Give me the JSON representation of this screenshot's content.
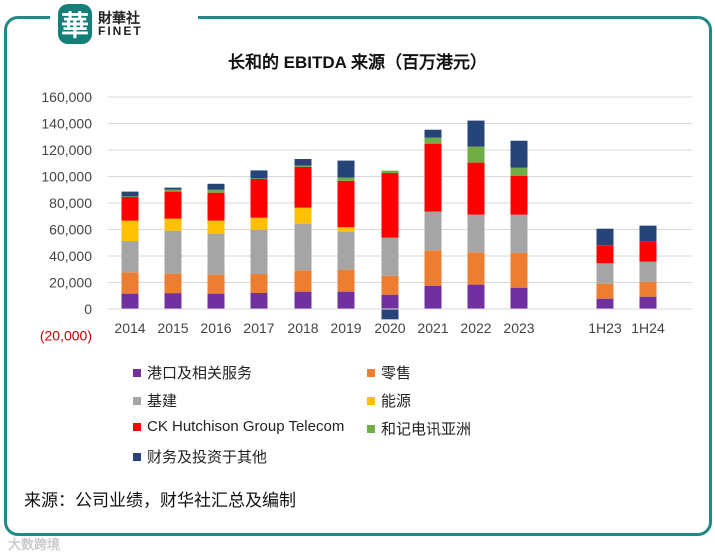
{
  "logo": {
    "mark": "華",
    "cn": "財華社",
    "en": "FINET"
  },
  "watermark": "大数跨境",
  "source": "来源：公司业绩，财华社汇总及编制",
  "chart_data": {
    "type": "bar",
    "stacked": true,
    "title": "长和的 EBITDA 来源（百万港元）",
    "xlabel": "",
    "ylabel": "",
    "ylim": [
      -20000,
      160000
    ],
    "yticks": [
      -20000,
      0,
      20000,
      40000,
      60000,
      80000,
      100000,
      120000,
      140000,
      160000
    ],
    "ytick_labels": [
      "(20,000)",
      "0",
      "20,000",
      "40,000",
      "60,000",
      "80,000",
      "100,000",
      "120,000",
      "140,000",
      "160,000"
    ],
    "grid": true,
    "legend_placement": "bottom",
    "categories": [
      "2014",
      "2015",
      "2016",
      "2017",
      "2018",
      "2019",
      "2020",
      "2021",
      "2022",
      "2023",
      "1H23",
      "1H24"
    ],
    "series": [
      {
        "name": "港口及相关服务",
        "color": "#7030a0",
        "values": [
          11600,
          12000,
          11600,
          12100,
          13100,
          13100,
          10800,
          17600,
          18400,
          16100,
          7800,
          9300
        ]
      },
      {
        "name": "零售",
        "color": "#ed7d31",
        "values": [
          16100,
          14700,
          14300,
          14300,
          16100,
          16600,
          14300,
          26700,
          24400,
          26200,
          11300,
          11300
        ]
      },
      {
        "name": "基建",
        "color": "#a5a5a5",
        "values": [
          23600,
          32400,
          31000,
          33500,
          35200,
          28700,
          28700,
          29200,
          28400,
          28900,
          15400,
          15100
        ]
      },
      {
        "name": "能源",
        "color": "#ffc000",
        "values": [
          15400,
          9100,
          9800,
          9000,
          12100,
          3300,
          0,
          0,
          0,
          0,
          0,
          0
        ]
      },
      {
        "name": "CK Hutchison Group Telecom",
        "color": "#ff0000",
        "values": [
          17800,
          20400,
          21100,
          29200,
          30700,
          35000,
          48800,
          51300,
          39300,
          29400,
          13600,
          15100
        ]
      },
      {
        "name": "和记电讯亚洲",
        "color": "#70ad47",
        "values": [
          500,
          1500,
          2200,
          500,
          1000,
          2500,
          1800,
          4500,
          12100,
          6000,
          0,
          0
        ]
      },
      {
        "name": "财务及投资于其他",
        "color": "#264478",
        "values": [
          3600,
          1500,
          4500,
          6000,
          5000,
          12800,
          -7800,
          6000,
          19600,
          20400,
          12500,
          12100
        ]
      }
    ]
  }
}
